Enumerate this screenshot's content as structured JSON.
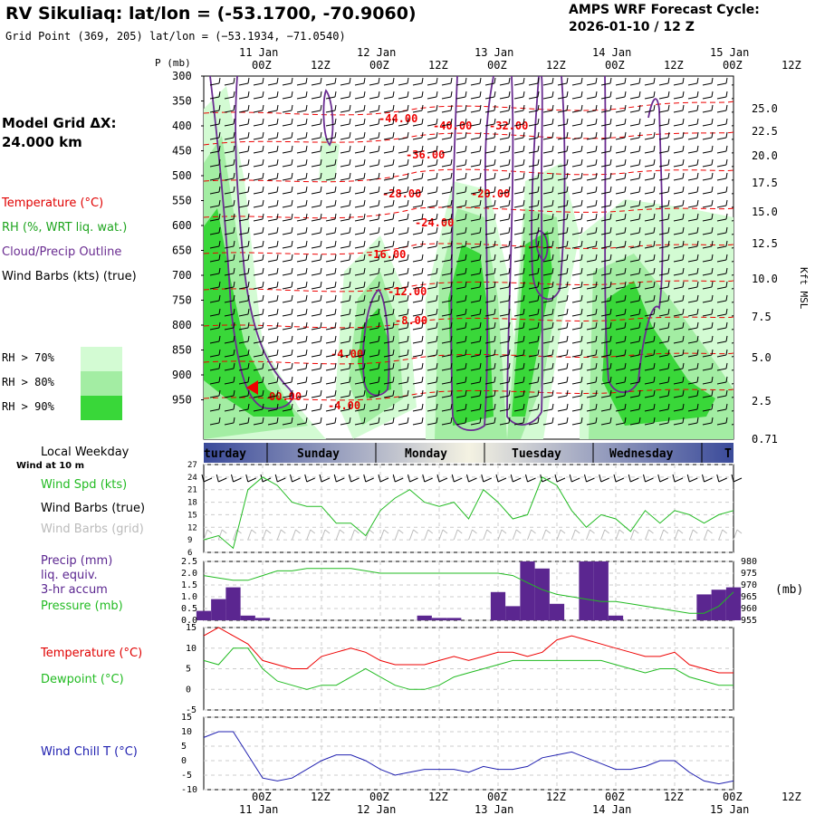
{
  "header": {
    "title": "RV Sikuliaq:  lat/lon = (-53.1700, -70.9060)",
    "gridpoint": "Grid Point (369, 205) lat/lon = (−53.1934, −71.0540)",
    "forecast_label": "AMPS WRF Forecast Cycle:",
    "forecast_cycle": "2026-01-10 / 12  Z",
    "model_grid_label": "Model Grid ΔX:",
    "model_grid_value": " 24.000 km"
  },
  "time_axis": {
    "ticks": [
      "00Z",
      "12Z",
      "00Z",
      "12Z",
      "00Z",
      "12Z",
      "00Z",
      "12Z",
      "00Z",
      "12Z"
    ],
    "dates": [
      "11 Jan",
      "12 Jan",
      "13 Jan",
      "14 Jan",
      "15 Jan"
    ]
  },
  "weekday_strip": {
    "title": "Local Weekday",
    "days": [
      "turday",
      "Sunday",
      "Monday",
      "Tuesday",
      "Wednesday",
      "T"
    ],
    "wind_note": "Wind at 10 m"
  },
  "legend_upper": {
    "temperature": "Temperature (°C)",
    "rh": "RH (%, WRT liq. wat.)",
    "cloud": "Cloud/Precip Outline",
    "wind": "Wind Barbs (kts) (true)",
    "rh70": "RH > 70%",
    "rh80": "RH > 80%",
    "rh90": "RH > 90%"
  },
  "colors": {
    "rh70": "#d3fbd3",
    "rh80": "#a3eda3",
    "rh90": "#39d739",
    "temperature": "#ee0000",
    "cloud": "#6a2c91",
    "precip": "#5b2690",
    "green_line": "#22bb22",
    "windchill": "#2020b0"
  },
  "cross_section": {
    "pressure_label": "P (mb)",
    "pressure_levels": [
      "300",
      "350",
      "400",
      "450",
      "500",
      "550",
      "600",
      "650",
      "700",
      "750",
      "800",
      "850",
      "900",
      "950"
    ],
    "kft_ticks": [
      "25.0",
      "22.5",
      "20.0",
      "17.5",
      "15.0",
      "12.5",
      "10.0",
      "7.5",
      "5.0",
      "2.5",
      "0.71"
    ],
    "kft_label": "Kft MSL",
    "temp_labels": [
      "-44.00",
      "-40.00",
      "-32.00",
      "-36.00",
      "-28.00",
      "-20.00",
      "-24.00",
      "-16.00",
      "-12.00",
      "-8.00",
      "-4.00",
      "-4.00",
      "00.00"
    ]
  },
  "chart_data": [
    {
      "type": "line",
      "title": "Wind Speed at 10 m",
      "ylabel": "Wind Spd (kts)",
      "labels": {
        "spd": "Wind Spd (kts)",
        "barbs_true": "Wind Barbs (true)",
        "barbs_grid": "Wind Barbs (grid)"
      },
      "x_hours": [
        0,
        3,
        6,
        9,
        12,
        15,
        18,
        21,
        24,
        27,
        30,
        33,
        36,
        39,
        42,
        45,
        48,
        51,
        54,
        57,
        60,
        63,
        66,
        69,
        72,
        75,
        78,
        81,
        84,
        87,
        90,
        93,
        96,
        99,
        102,
        105,
        108
      ],
      "values": [
        9,
        10,
        7,
        21,
        24,
        22,
        18,
        17,
        17,
        13,
        13,
        10,
        16,
        19,
        21,
        18,
        17,
        18,
        14,
        21,
        18,
        14,
        15,
        24,
        22,
        16,
        12,
        15,
        14,
        11,
        16,
        13,
        16,
        15,
        13,
        15,
        16
      ],
      "ylim": [
        6,
        27
      ],
      "yticks": [
        "27",
        "24",
        "21",
        "18",
        "15",
        "12",
        "9",
        "6"
      ]
    },
    {
      "type": "bar",
      "title": "Precip / Pressure",
      "labels": {
        "precip": "Precip (mm)",
        "liq": "liq. equiv.",
        "accum": "3-hr accum",
        "pressure": "Pressure (mb)",
        "unit": "(mb)"
      },
      "x_hours": [
        0,
        3,
        6,
        9,
        12,
        15,
        18,
        21,
        24,
        27,
        30,
        33,
        36,
        39,
        42,
        45,
        48,
        51,
        54,
        57,
        60,
        63,
        66,
        69,
        72,
        75,
        78,
        81,
        84,
        87,
        90,
        93,
        96,
        99,
        102,
        105,
        108
      ],
      "precip_mm": [
        0.4,
        0.9,
        1.4,
        0.2,
        0.1,
        0,
        0,
        0,
        0,
        0,
        0,
        0,
        0,
        0,
        0,
        0.2,
        0.1,
        0.1,
        0,
        0,
        1.2,
        0.6,
        2.5,
        2.2,
        0.7,
        0,
        2.5,
        2.5,
        0.2,
        0,
        0,
        0,
        0,
        0,
        1.1,
        1.3,
        1.4
      ],
      "pressure_mb": [
        974,
        973,
        972,
        972,
        974,
        976,
        976,
        977,
        977,
        977,
        977,
        976,
        975,
        975,
        975,
        975,
        975,
        975,
        975,
        975,
        975,
        974,
        971,
        968,
        966,
        965,
        964,
        963,
        963,
        962,
        961,
        960,
        959,
        958,
        958,
        961,
        967
      ],
      "y_left_ticks": [
        "2.5",
        "2.0",
        "1.5",
        "1.0",
        "0.5",
        "0.0"
      ],
      "y_right_ticks": [
        "980",
        "975",
        "970",
        "965",
        "960",
        "955"
      ]
    },
    {
      "type": "line",
      "title": "Temperature / Dewpoint",
      "labels": {
        "temp": "Temperature (°C)",
        "dew": "Dewpoint (°C)"
      },
      "x_hours": [
        0,
        3,
        6,
        9,
        12,
        15,
        18,
        21,
        24,
        27,
        30,
        33,
        36,
        39,
        42,
        45,
        48,
        51,
        54,
        57,
        60,
        63,
        66,
        69,
        72,
        75,
        78,
        81,
        84,
        87,
        90,
        93,
        96,
        99,
        102,
        105,
        108
      ],
      "series": [
        {
          "name": "Temperature",
          "values": [
            13,
            15,
            13,
            11,
            7,
            6,
            5,
            5,
            8,
            9,
            10,
            9,
            7,
            6,
            6,
            6,
            7,
            8,
            7,
            8,
            9,
            9,
            8,
            9,
            12,
            13,
            12,
            11,
            10,
            9,
            8,
            8,
            9,
            6,
            5,
            4,
            4
          ]
        },
        {
          "name": "Dewpoint",
          "values": [
            7,
            6,
            10,
            10,
            5,
            2,
            1,
            0,
            1,
            1,
            3,
            5,
            3,
            1,
            0,
            0,
            1,
            3,
            4,
            5,
            6,
            7,
            7,
            7,
            7,
            7,
            7,
            7,
            6,
            5,
            4,
            5,
            5,
            3,
            2,
            1,
            1
          ]
        }
      ],
      "ylim": [
        -5,
        15
      ],
      "yticks": [
        "15",
        "10",
        "5",
        "0",
        "-5"
      ]
    },
    {
      "type": "line",
      "title": "Wind Chill",
      "labels": {
        "wc": "Wind Chill T (°C)"
      },
      "x_hours": [
        0,
        3,
        6,
        9,
        12,
        15,
        18,
        21,
        24,
        27,
        30,
        33,
        36,
        39,
        42,
        45,
        48,
        51,
        54,
        57,
        60,
        63,
        66,
        69,
        72,
        75,
        78,
        81,
        84,
        87,
        90,
        93,
        96,
        99,
        102,
        105,
        108
      ],
      "values": [
        8,
        10,
        10,
        2,
        -6,
        -7,
        -6,
        -3,
        0,
        2,
        2,
        0,
        -3,
        -5,
        -4,
        -3,
        -3,
        -3,
        -4,
        -2,
        -3,
        -3,
        -2,
        1,
        2,
        3,
        1,
        -1,
        -3,
        -3,
        -2,
        0,
        0,
        -4,
        -7,
        -8,
        -7
      ],
      "ylim": [
        -10,
        15
      ],
      "yticks": [
        "15",
        "10",
        "5",
        "0",
        "-5",
        "-10"
      ]
    }
  ]
}
